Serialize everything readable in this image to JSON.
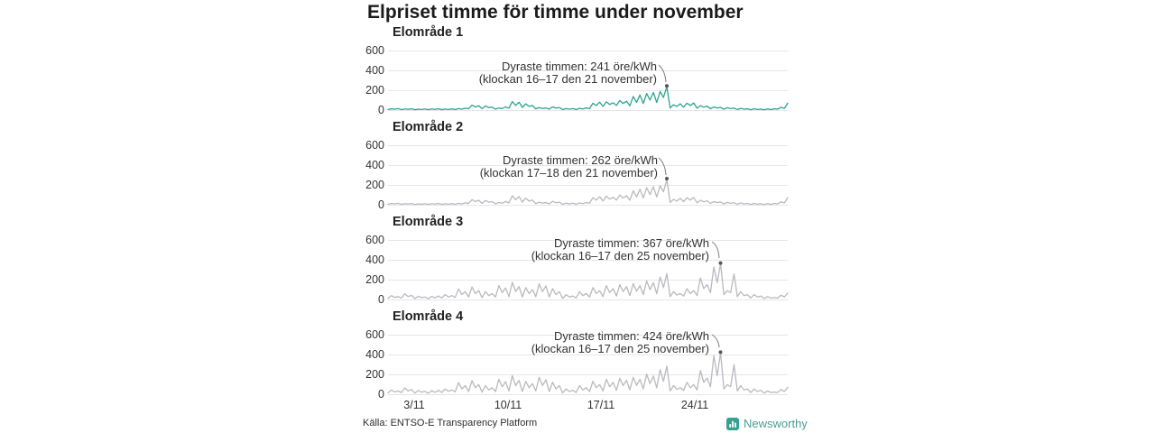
{
  "title": "Elpriset timme för timme under november",
  "footer": {
    "source": "Källa: ENTSO-E Transparency Platform",
    "brand": "Newsworthy"
  },
  "colors": {
    "highlight_line": "#2da394",
    "muted_line": "#b9b9c1",
    "grid": "#e6e6e9",
    "annotation_text": "#333333",
    "peak_dot": "#555555",
    "brand_teal": "#35a093"
  },
  "chart_data": {
    "type": "line",
    "title": "Elpriset timme för timme under november",
    "xlabel": "",
    "ylabel": "öre/kWh",
    "x_unit": "days of November, 4 samples per day",
    "x_range_days": [
      1,
      30
    ],
    "ylim": [
      0,
      660
    ],
    "y_ticks": [
      "600",
      "400",
      "200",
      "0"
    ],
    "x_tick_labels": [
      "3/11",
      "10/11",
      "17/11",
      "24/11"
    ],
    "x_tick_days": [
      3,
      10,
      17,
      24
    ],
    "grid": true,
    "legend": "none",
    "panels": [
      {
        "title": "Elområde 1",
        "line_color": "#2da394",
        "annotation_line1": "Dyraste timmen: 241 öre/kWh",
        "annotation_line2": "(klockan 16–17 den 21 november)",
        "max": {
          "value": 241,
          "hours": "16–17",
          "date": "21 november"
        },
        "values": [
          14,
          22,
          18,
          24,
          13,
          20,
          16,
          22,
          12,
          18,
          15,
          20,
          12,
          20,
          16,
          22,
          13,
          19,
          15,
          21,
          14,
          24,
          18,
          28,
          22,
          58,
          40,
          52,
          24,
          50,
          34,
          38,
          18,
          30,
          24,
          40,
          28,
          95,
          55,
          88,
          35,
          72,
          45,
          55,
          20,
          34,
          24,
          30,
          18,
          42,
          28,
          34,
          14,
          24,
          18,
          24,
          14,
          26,
          20,
          30,
          24,
          78,
          55,
          88,
          45,
          92,
          65,
          82,
          55,
          105,
          75,
          98,
          52,
          145,
          85,
          160,
          75,
          175,
          110,
          185,
          85,
          195,
          135,
          241,
          30,
          62,
          45,
          72,
          38,
          78,
          55,
          80,
          28,
          52,
          38,
          48,
          22,
          40,
          30,
          36,
          18,
          32,
          24,
          28,
          14,
          26,
          18,
          22,
          12,
          22,
          15,
          18,
          11,
          20,
          14,
          22,
          18,
          36,
          26,
          78
        ]
      },
      {
        "title": "Elområde 2",
        "line_color": "#b9b9c1",
        "annotation_line1": "Dyraste timmen: 262 öre/kWh",
        "annotation_line2": "(klockan 17–18 den 21 november)",
        "max": {
          "value": 262,
          "hours": "17–18",
          "date": "21 november"
        },
        "values": [
          14,
          22,
          18,
          24,
          13,
          20,
          16,
          22,
          12,
          18,
          15,
          20,
          12,
          20,
          16,
          22,
          13,
          19,
          15,
          21,
          14,
          24,
          18,
          28,
          22,
          60,
          42,
          54,
          24,
          52,
          35,
          40,
          18,
          32,
          25,
          42,
          28,
          100,
          58,
          92,
          36,
          75,
          46,
          56,
          20,
          35,
          25,
          31,
          18,
          44,
          29,
          35,
          14,
          25,
          18,
          25,
          14,
          27,
          20,
          31,
          25,
          80,
          56,
          90,
          46,
          95,
          66,
          84,
          56,
          108,
          76,
          100,
          54,
          150,
          88,
          165,
          78,
          180,
          112,
          190,
          88,
          200,
          138,
          262,
          32,
          64,
          46,
          74,
          40,
          80,
          56,
          82,
          29,
          54,
          39,
          49,
          23,
          41,
          31,
          37,
          18,
          33,
          24,
          29,
          14,
          27,
          18,
          23,
          12,
          22,
          15,
          19,
          11,
          21,
          14,
          23,
          18,
          38,
          27,
          80
        ]
      },
      {
        "title": "Elområde 3",
        "line_color": "#b9b9c1",
        "annotation_line1": "Dyraste timmen: 367 öre/kWh",
        "annotation_line2": "(klockan 16–17 den 25 november)",
        "max": {
          "value": 367,
          "hours": "16–17",
          "date": "25 november"
        },
        "values": [
          20,
          48,
          30,
          38,
          24,
          66,
          38,
          52,
          18,
          42,
          28,
          34,
          16,
          40,
          26,
          44,
          24,
          58,
          34,
          48,
          30,
          115,
          58,
          88,
          34,
          135,
          68,
          98,
          28,
          88,
          48,
          68,
          34,
          148,
          78,
          125,
          38,
          180,
          88,
          138,
          34,
          128,
          68,
          108,
          38,
          165,
          88,
          145,
          34,
          118,
          58,
          88,
          20,
          58,
          34,
          44,
          24,
          88,
          48,
          68,
          34,
          128,
          68,
          98,
          38,
          148,
          78,
          118,
          44,
          158,
          88,
          138,
          48,
          168,
          92,
          148,
          58,
          195,
          108,
          178,
          68,
          235,
          128,
          268,
          38,
          88,
          54,
          68,
          44,
          118,
          68,
          98,
          48,
          225,
          118,
          158,
          78,
          335,
          178,
          367,
          58,
          98,
          78,
          265,
          38,
          88,
          48,
          58,
          24,
          58,
          34,
          44,
          18,
          38,
          24,
          28,
          24,
          52,
          34,
          72
        ]
      },
      {
        "title": "Elområde 4",
        "line_color": "#b9b9c1",
        "annotation_line1": "Dyraste timmen: 424 öre/kWh",
        "annotation_line2": "(klockan 16–17 den 25 november)",
        "max": {
          "value": 424,
          "hours": "16–17",
          "date": "25 november"
        },
        "values": [
          22,
          52,
          32,
          42,
          26,
          72,
          42,
          56,
          20,
          46,
          30,
          38,
          18,
          44,
          28,
          48,
          26,
          62,
          38,
          52,
          32,
          125,
          62,
          95,
          36,
          145,
          74,
          105,
          30,
          95,
          52,
          74,
          36,
          158,
          84,
          135,
          42,
          195,
          95,
          148,
          36,
          138,
          74,
          115,
          42,
          178,
          95,
          155,
          36,
          128,
          62,
          95,
          22,
          62,
          36,
          48,
          26,
          95,
          52,
          74,
          36,
          138,
          74,
          105,
          42,
          158,
          84,
          128,
          48,
          168,
          95,
          148,
          52,
          178,
          98,
          158,
          62,
          210,
          115,
          190,
          74,
          255,
          138,
          290,
          42,
          95,
          58,
          74,
          48,
          128,
          74,
          105,
          52,
          245,
          128,
          170,
          85,
          395,
          195,
          424,
          62,
          105,
          85,
          305,
          42,
          95,
          52,
          62,
          26,
          62,
          36,
          48,
          20,
          42,
          26,
          30,
          26,
          56,
          36,
          78
        ]
      }
    ]
  }
}
